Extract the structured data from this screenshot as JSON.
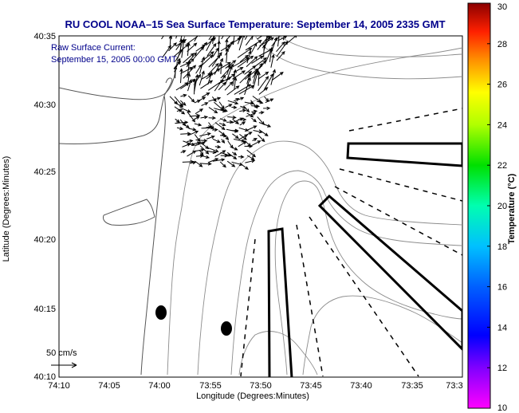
{
  "chart_data": {
    "type": "map",
    "title": "RU COOL  NOAA–15  Sea Surface Temperature:  September 14, 2005 2335 GMT",
    "legend": {
      "line1": "Raw Surface Current:",
      "line2": "September 15, 2005 00:00 GMT"
    },
    "xlabel": "Longitude (Degrees:Minutes)",
    "ylabel": "Latitude (Degrees:Minutes)",
    "x_ticks": [
      "74:10",
      "74:05",
      "74:00",
      "73:55",
      "73:50",
      "73:45",
      "73:40",
      "73:35",
      "73:3"
    ],
    "y_ticks": [
      "40:35",
      "40:30",
      "40:25",
      "40:20",
      "40:15",
      "40:10"
    ],
    "colorbar": {
      "label": "Temperature (°C)",
      "min": 10,
      "max": 30,
      "ticks": [
        "30",
        "28",
        "26",
        "24",
        "22",
        "20",
        "18",
        "16",
        "14",
        "12",
        "10"
      ]
    },
    "scale_label": "50 cm/s",
    "scale_speed_cm_s": 50
  },
  "colors": {
    "title": "#00008b",
    "contour": "#8c8c8c",
    "vectors": "#000000"
  }
}
